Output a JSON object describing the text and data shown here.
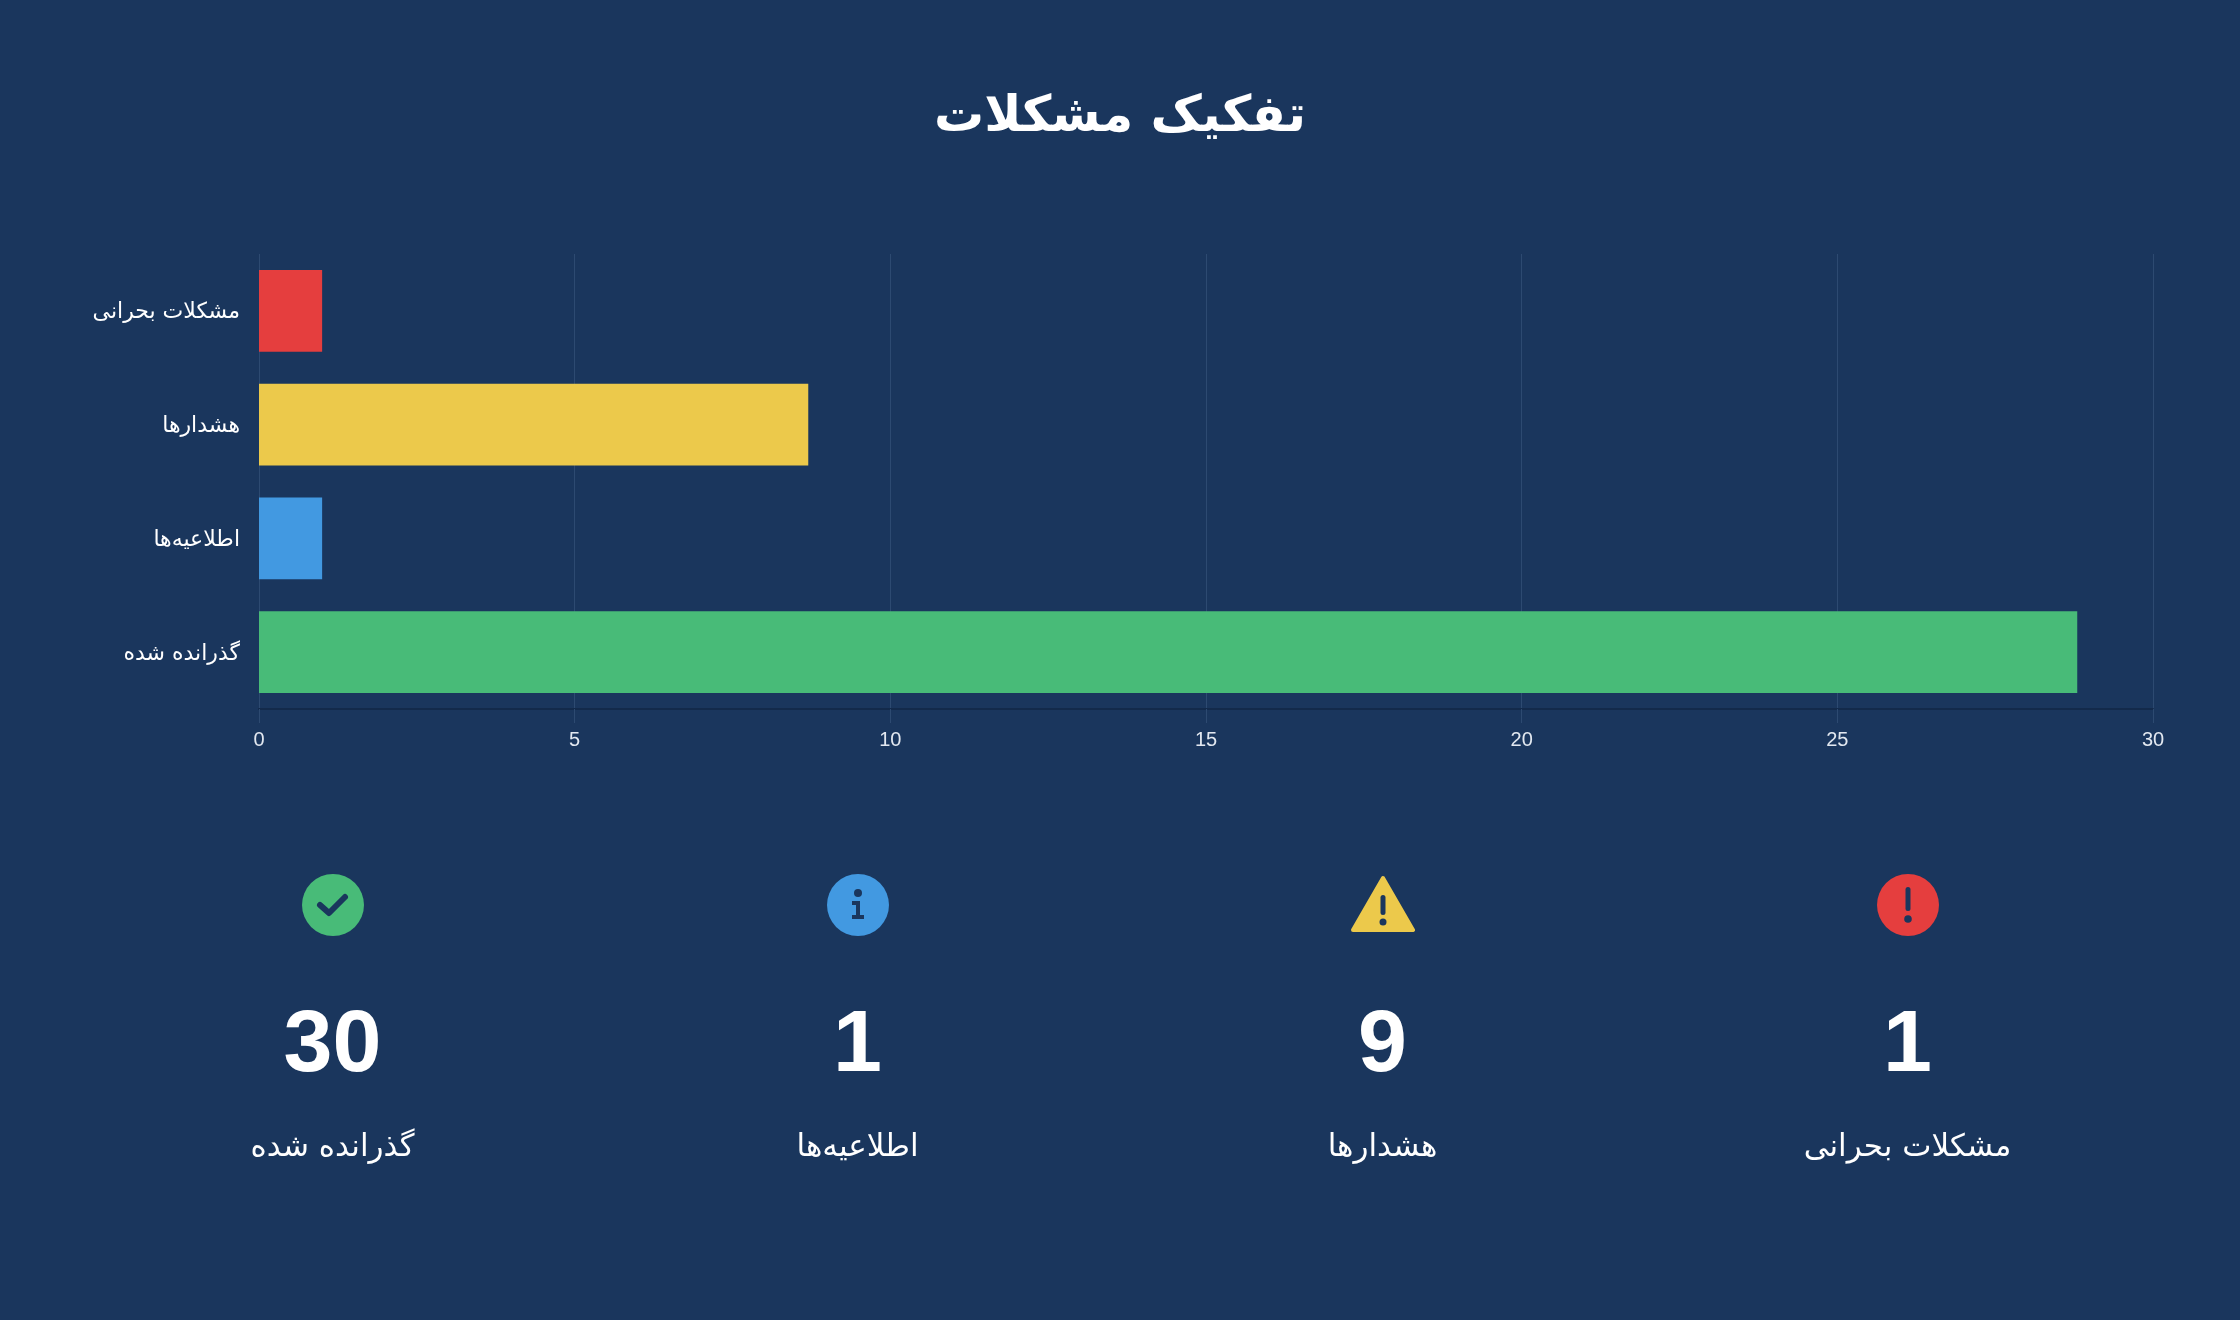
{
  "chart_data": [
    {
      "type": "bar",
      "title": "تفکیک مشکلات",
      "orientation": "horizontal",
      "categories": [
        "مشکلات بحرانی",
        "هشدارها",
        "اطلاعیه‌ها",
        "گذرانده شده"
      ],
      "values": [
        1,
        8.7,
        1,
        28.8
      ],
      "colors": [
        "#e53e3e",
        "#ecc94b",
        "#4299e1",
        "#48bb78"
      ],
      "xlim": [
        0,
        30
      ],
      "xticks": [
        0,
        5,
        10,
        15,
        20,
        25,
        30
      ],
      "grid": "x"
    },
    {
      "type": "other",
      "categories": [
        "گذرانده شده",
        "اطلاعیه‌ها",
        "هشدارها",
        "مشکلات بحرانی"
      ],
      "values": [
        30,
        1,
        9,
        1
      ],
      "colors": [
        "#48bb78",
        "#4299e1",
        "#ecc94b",
        "#e53e3e"
      ],
      "data_labels": true
    }
  ]
}
